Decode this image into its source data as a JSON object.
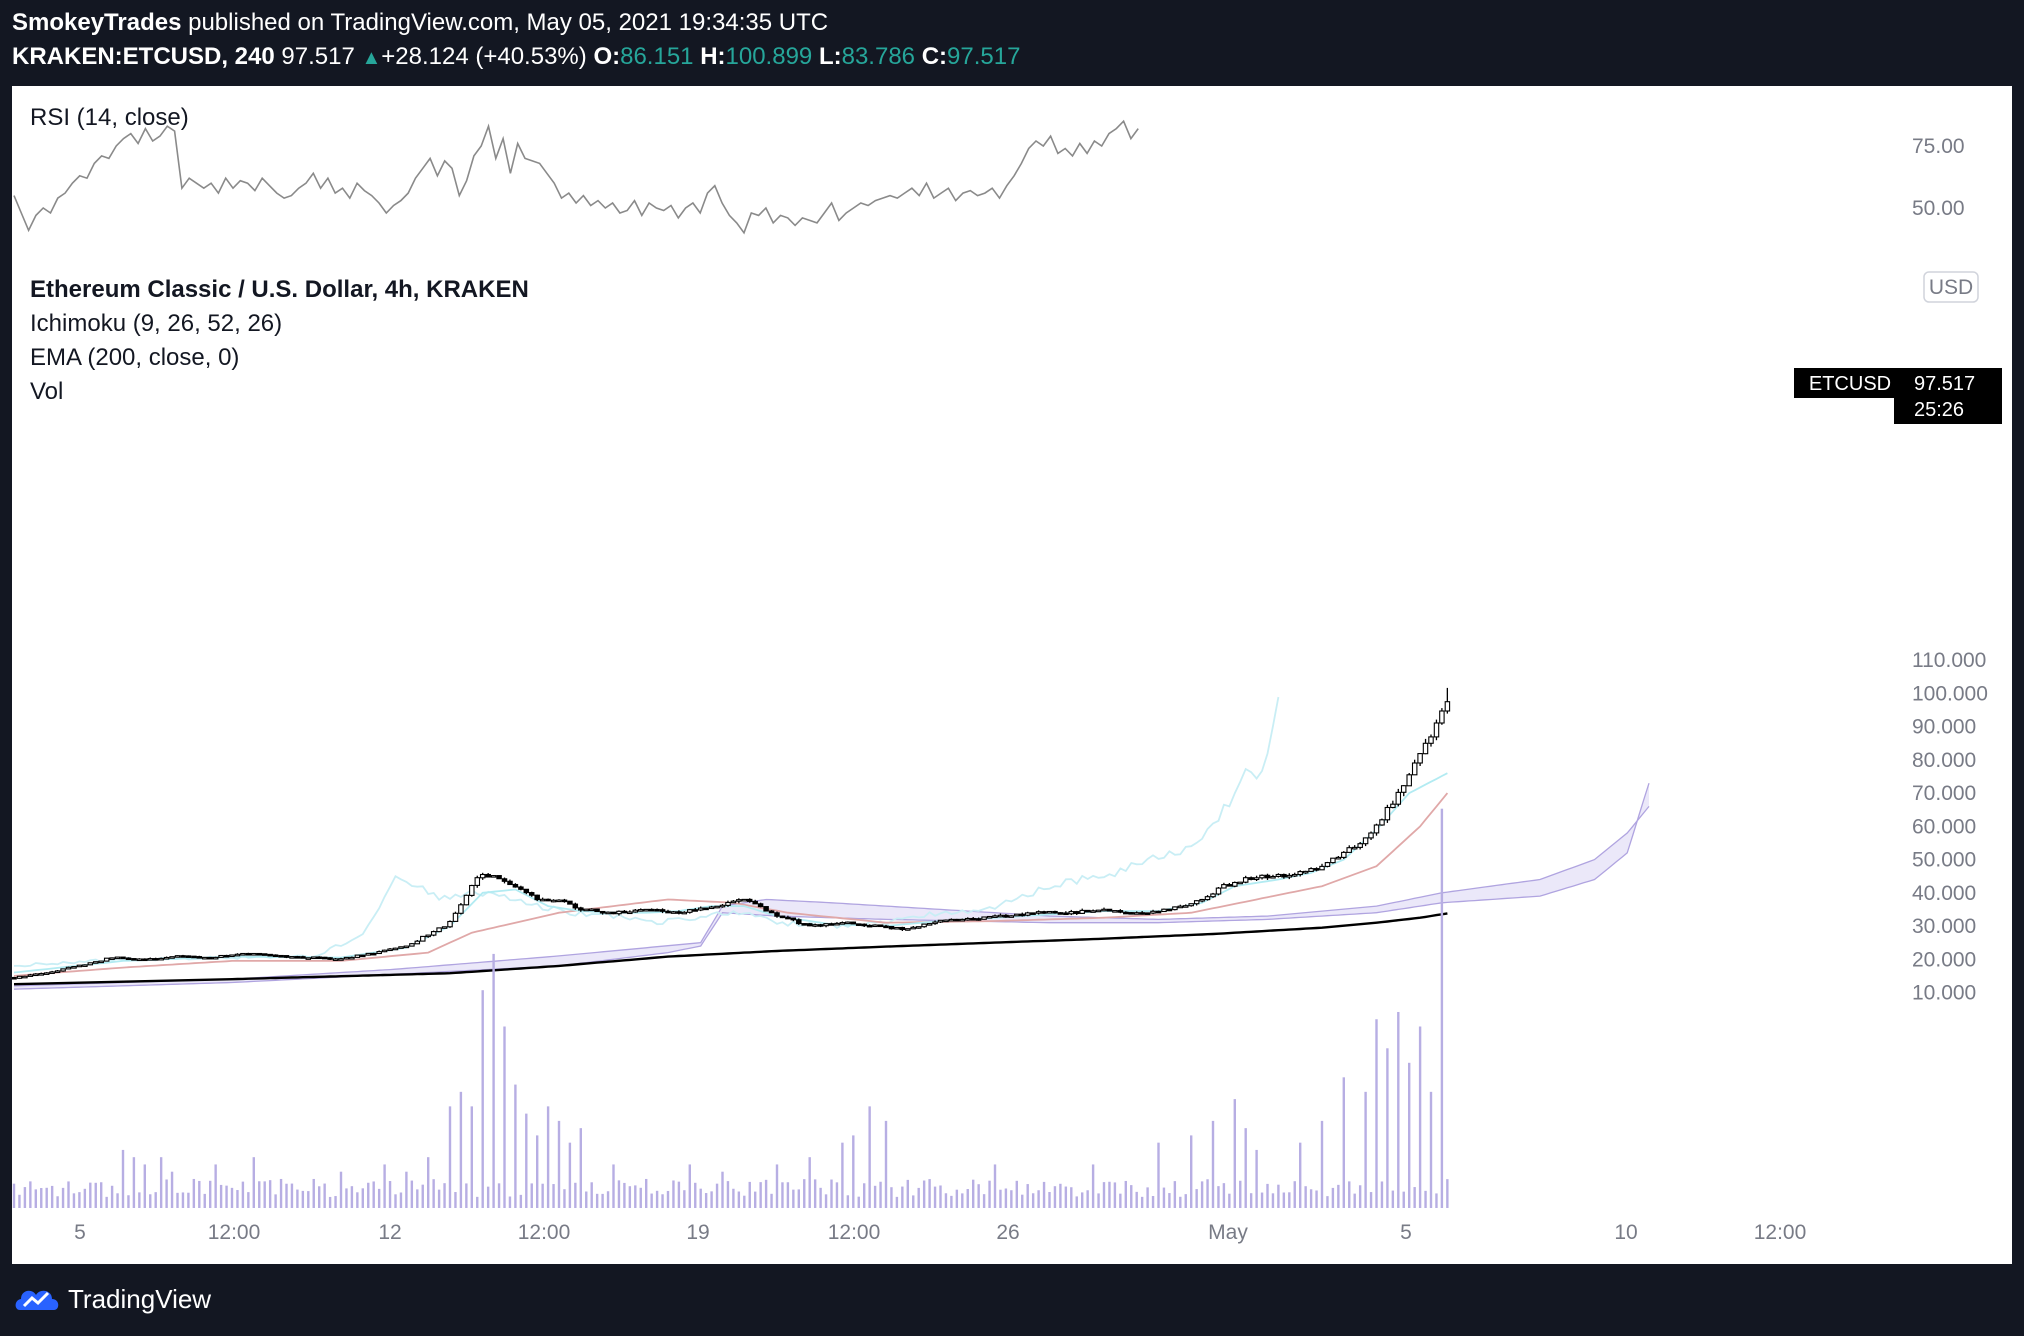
{
  "header": {
    "author": "SmokeyTrades",
    "published_text": "published on TradingView.com, May 05, 2021 19:34:35 UTC",
    "symbol": "KRAKEN:ETCUSD, 240",
    "last": "97.517",
    "up_arrow": "▲",
    "change": "+28.124 (+40.53%)",
    "o_label": "O:",
    "o_value": "86.151",
    "h_label": "H:",
    "h_value": "100.899",
    "l_label": "L:",
    "l_value": "83.786",
    "c_label": "C:",
    "c_value": "97.517"
  },
  "legend": {
    "rsi": "RSI (14, close)",
    "title": "Ethereum Classic / U.S. Dollar, 4h, KRAKEN",
    "ichimoku": "Ichimoku (9, 26, 52, 26)",
    "ema": "EMA (200, close, 0)",
    "vol": "Vol"
  },
  "price_tag": {
    "symbol": "ETCUSD",
    "price": "97.517",
    "countdown": "25:26"
  },
  "currency_badge": "USD",
  "footer": {
    "brand": "TradingView"
  },
  "colors": {
    "background": "#131722",
    "candle": "#000000",
    "conversion_line": "#b2ebf2",
    "base_line": "#e0a8a8",
    "lagging_span": "#c9eef5",
    "cloud_fill": "#e8e4f8",
    "cloud_edge": "#b0a4e0",
    "ema": "#000000",
    "volume": "#b7aee3",
    "rsi": "#8a8a8a",
    "accent_green": "#26a69a"
  },
  "chart_data": [
    {
      "type": "line",
      "name": "RSI (14, close)",
      "ylim": [
        40,
        85
      ],
      "y_ticks": [
        "75.00",
        "50.00"
      ],
      "values": [
        55,
        48,
        41,
        47,
        50,
        48,
        54,
        56,
        60,
        63,
        62,
        68,
        71,
        70,
        75,
        78,
        80,
        76,
        82,
        77,
        79,
        83,
        81,
        58,
        62,
        60,
        58,
        60,
        56,
        62,
        58,
        61,
        60,
        57,
        62,
        59,
        56,
        54,
        55,
        58,
        60,
        64,
        58,
        62,
        56,
        58,
        54,
        60,
        57,
        55,
        52,
        48,
        51,
        53,
        56,
        62,
        66,
        70,
        63,
        69,
        66,
        55,
        61,
        71,
        75,
        83,
        70,
        78,
        64,
        76,
        70,
        69,
        68,
        64,
        60,
        54,
        56,
        52,
        55,
        51,
        53,
        50,
        52,
        48,
        49,
        53,
        47,
        52,
        50,
        49,
        51,
        46,
        50,
        52,
        48,
        56,
        59,
        52,
        47,
        44,
        40,
        48,
        47,
        50,
        44,
        47,
        46,
        43,
        46,
        45,
        44,
        48,
        52,
        45,
        48,
        50,
        52,
        51,
        53,
        54,
        55,
        54,
        56,
        58,
        55,
        60,
        54,
        56,
        58,
        53,
        56,
        57,
        55,
        56,
        58,
        54,
        59,
        63,
        68,
        74,
        77,
        75,
        79,
        72,
        74,
        71,
        76,
        72,
        77,
        75,
        80,
        82,
        85,
        78,
        82
      ],
      "text_values": [
        {
          "label": "75.00",
          "value": 75
        },
        {
          "label": "50.00",
          "value": 50
        }
      ]
    },
    {
      "type": "candlestick",
      "title": "Ethereum Classic / U.S. Dollar, 4h, KRAKEN",
      "y_ticks": [
        "110.000",
        "100.000",
        "90.000",
        "80.000",
        "70.000",
        "60.000",
        "50.000",
        "40.000",
        "30.000",
        "20.000",
        "10.000"
      ],
      "x_ticks": [
        "5",
        "12:00",
        "12",
        "12:00",
        "19",
        "12:00",
        "26",
        "May",
        "5",
        "10",
        "12:00"
      ],
      "ylim": [
        3,
        113
      ],
      "keypoints": [
        [
          0,
          14.5
        ],
        [
          6,
          16
        ],
        [
          12,
          18
        ],
        [
          18,
          20.5
        ],
        [
          24,
          20
        ],
        [
          30,
          21
        ],
        [
          36,
          20.5
        ],
        [
          42,
          22
        ],
        [
          48,
          21
        ],
        [
          54,
          20.5
        ],
        [
          60,
          20
        ],
        [
          66,
          22
        ],
        [
          72,
          24
        ],
        [
          80,
          31
        ],
        [
          85,
          45
        ],
        [
          88,
          45
        ],
        [
          92,
          42
        ],
        [
          96,
          38
        ],
        [
          100,
          38
        ],
        [
          104,
          35
        ],
        [
          110,
          34
        ],
        [
          116,
          35
        ],
        [
          122,
          34
        ],
        [
          128,
          36
        ],
        [
          134,
          38
        ],
        [
          140,
          33
        ],
        [
          146,
          30
        ],
        [
          152,
          31
        ],
        [
          158,
          30
        ],
        [
          164,
          29
        ],
        [
          170,
          32
        ],
        [
          176,
          32
        ],
        [
          182,
          33
        ],
        [
          188,
          34
        ],
        [
          194,
          34
        ],
        [
          200,
          35
        ],
        [
          206,
          34
        ],
        [
          212,
          35
        ],
        [
          218,
          38
        ],
        [
          222,
          42
        ],
        [
          228,
          45
        ],
        [
          234,
          45
        ],
        [
          240,
          48
        ],
        [
          244,
          52
        ],
        [
          248,
          56
        ],
        [
          252,
          65
        ],
        [
          256,
          75
        ],
        [
          260,
          88
        ],
        [
          263,
          97.5
        ]
      ],
      "ichimoku": {
        "conversion_keypoints": [
          [
            0,
            16
          ],
          [
            20,
            19.5
          ],
          [
            40,
            20.8
          ],
          [
            60,
            20.5
          ],
          [
            72,
            23.5
          ],
          [
            80,
            30
          ],
          [
            86,
            40
          ],
          [
            92,
            41
          ],
          [
            98,
            36
          ],
          [
            104,
            34.5
          ],
          [
            110,
            34
          ],
          [
            116,
            34
          ],
          [
            122,
            34.5
          ],
          [
            128,
            36
          ],
          [
            134,
            36
          ],
          [
            140,
            33
          ],
          [
            150,
            30.5
          ],
          [
            160,
            30
          ],
          [
            170,
            31.5
          ],
          [
            180,
            32.5
          ],
          [
            190,
            33.5
          ],
          [
            200,
            34.5
          ],
          [
            210,
            34.5
          ],
          [
            218,
            37
          ],
          [
            224,
            42
          ],
          [
            232,
            44
          ],
          [
            238,
            46
          ],
          [
            244,
            50
          ],
          [
            250,
            59
          ],
          [
            256,
            70
          ],
          [
            263,
            76
          ]
        ],
        "base_keypoints": [
          [
            0,
            15
          ],
          [
            20,
            17.5
          ],
          [
            40,
            19.5
          ],
          [
            60,
            19.5
          ],
          [
            76,
            22
          ],
          [
            84,
            28
          ],
          [
            100,
            34
          ],
          [
            120,
            38
          ],
          [
            132,
            37
          ],
          [
            142,
            34
          ],
          [
            160,
            31
          ],
          [
            180,
            31.5
          ],
          [
            200,
            32.5
          ],
          [
            216,
            34
          ],
          [
            228,
            38
          ],
          [
            240,
            42
          ],
          [
            250,
            48
          ],
          [
            258,
            60
          ],
          [
            263,
            70
          ]
        ],
        "cloud_a_keypoints": [
          [
            0,
            12
          ],
          [
            40,
            14
          ],
          [
            70,
            17
          ],
          [
            100,
            21
          ],
          [
            126,
            25
          ],
          [
            130,
            36
          ],
          [
            138,
            38
          ],
          [
            150,
            37
          ],
          [
            170,
            35
          ],
          [
            190,
            33
          ],
          [
            210,
            32
          ],
          [
            230,
            33
          ],
          [
            250,
            36
          ],
          [
            262,
            40
          ],
          [
            280,
            44
          ],
          [
            290,
            50
          ],
          [
            296,
            58
          ],
          [
            300,
            66
          ]
        ],
        "cloud_b_keypoints": [
          [
            0,
            11
          ],
          [
            40,
            13
          ],
          [
            70,
            15.5
          ],
          [
            100,
            18
          ],
          [
            120,
            22
          ],
          [
            126,
            24
          ],
          [
            130,
            34
          ],
          [
            140,
            33
          ],
          [
            160,
            32
          ],
          [
            190,
            31
          ],
          [
            210,
            31
          ],
          [
            230,
            32
          ],
          [
            250,
            34
          ],
          [
            262,
            37
          ],
          [
            280,
            39
          ],
          [
            290,
            44
          ],
          [
            296,
            52
          ],
          [
            300,
            73
          ]
        ],
        "lagging_keypoints": [
          [
            0,
            18
          ],
          [
            20,
            20
          ],
          [
            40,
            20.5
          ],
          [
            55,
            21
          ],
          [
            64,
            27
          ],
          [
            70,
            45
          ],
          [
            74,
            42
          ],
          [
            78,
            38
          ],
          [
            84,
            40
          ],
          [
            90,
            39
          ],
          [
            96,
            36
          ],
          [
            102,
            34
          ],
          [
            110,
            33
          ],
          [
            118,
            31
          ],
          [
            126,
            33
          ],
          [
            134,
            34
          ],
          [
            140,
            31
          ],
          [
            150,
            30
          ],
          [
            160,
            31
          ],
          [
            170,
            34
          ],
          [
            178,
            35
          ],
          [
            184,
            38
          ],
          [
            190,
            42
          ],
          [
            196,
            44
          ],
          [
            202,
            46
          ],
          [
            208,
            50
          ],
          [
            214,
            52
          ],
          [
            220,
            60
          ],
          [
            224,
            70
          ],
          [
            226,
            78
          ],
          [
            228,
            73
          ],
          [
            230,
            82
          ],
          [
            232,
            100
          ]
        ]
      },
      "ema_keypoints": [
        [
          0,
          12.5
        ],
        [
          40,
          14
        ],
        [
          80,
          15.8
        ],
        [
          100,
          18
        ],
        [
          120,
          20.8
        ],
        [
          140,
          22.5
        ],
        [
          160,
          23.8
        ],
        [
          180,
          25
        ],
        [
          200,
          26.2
        ],
        [
          220,
          27.6
        ],
        [
          240,
          29.5
        ],
        [
          250,
          31
        ],
        [
          258,
          32.5
        ],
        [
          263,
          33.8
        ]
      ],
      "volume": {
        "max_value": 100,
        "spikes": [
          [
            20,
            8
          ],
          [
            22,
            7
          ],
          [
            24,
            6
          ],
          [
            27,
            7
          ],
          [
            29,
            5
          ],
          [
            33,
            4
          ],
          [
            37,
            6
          ],
          [
            44,
            7
          ],
          [
            49,
            4
          ],
          [
            55,
            4
          ],
          [
            60,
            5
          ],
          [
            68,
            6
          ],
          [
            72,
            5
          ],
          [
            76,
            7
          ],
          [
            80,
            14
          ],
          [
            82,
            16
          ],
          [
            84,
            14
          ],
          [
            86,
            30
          ],
          [
            88,
            35
          ],
          [
            90,
            25
          ],
          [
            92,
            17
          ],
          [
            94,
            13
          ],
          [
            96,
            10
          ],
          [
            98,
            14
          ],
          [
            100,
            12
          ],
          [
            102,
            9
          ],
          [
            104,
            11
          ],
          [
            110,
            6
          ],
          [
            116,
            4
          ],
          [
            124,
            6
          ],
          [
            130,
            5
          ],
          [
            140,
            6
          ],
          [
            146,
            7
          ],
          [
            152,
            9
          ],
          [
            154,
            10
          ],
          [
            157,
            14
          ],
          [
            160,
            12
          ],
          [
            180,
            6
          ],
          [
            198,
            6
          ],
          [
            210,
            9
          ],
          [
            216,
            10
          ],
          [
            220,
            12
          ],
          [
            224,
            15
          ],
          [
            226,
            11
          ],
          [
            228,
            8
          ],
          [
            236,
            9
          ],
          [
            240,
            12
          ],
          [
            244,
            18
          ],
          [
            248,
            16
          ],
          [
            250,
            26
          ],
          [
            252,
            22
          ],
          [
            254,
            27
          ],
          [
            256,
            20
          ],
          [
            258,
            25
          ],
          [
            260,
            16
          ],
          [
            262,
            55
          ]
        ]
      }
    }
  ]
}
